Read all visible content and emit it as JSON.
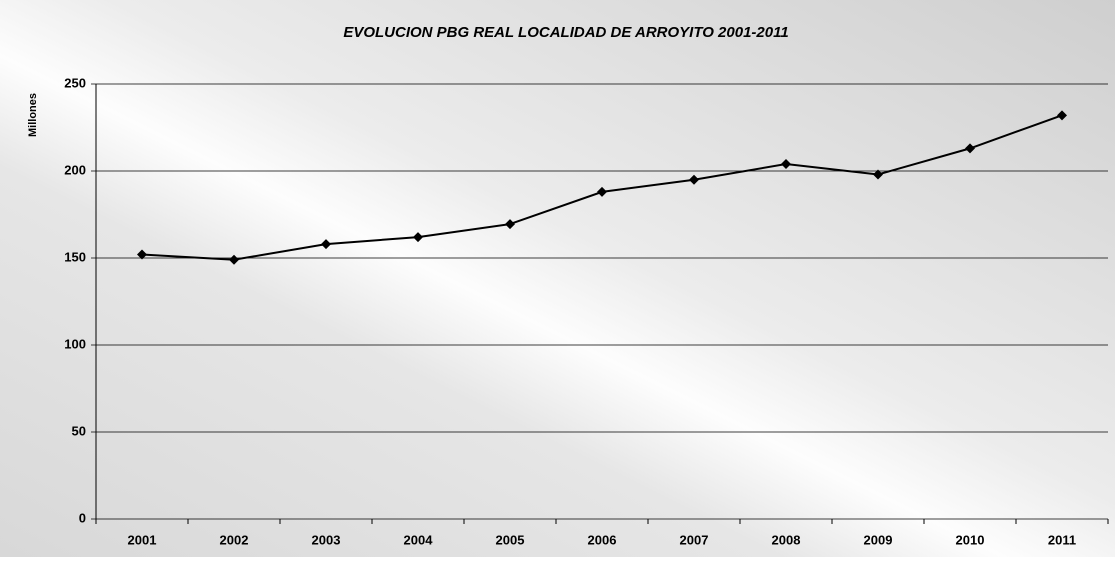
{
  "chart_data": {
    "type": "line",
    "title": "EVOLUCION PBG REAL LOCALIDAD DE ARROYITO 2001-2011",
    "y_label": "Millones",
    "categories": [
      "2001",
      "2002",
      "2003",
      "2004",
      "2005",
      "2006",
      "2007",
      "2008",
      "2009",
      "2010",
      "2011"
    ],
    "values": [
      152,
      149,
      158,
      162,
      169.5,
      188,
      195,
      204,
      198,
      213,
      232
    ],
    "color": "#000000",
    "ylim": [
      0,
      250
    ],
    "yticks": [
      0,
      50,
      100,
      150,
      200,
      250
    ],
    "grid": true
  }
}
